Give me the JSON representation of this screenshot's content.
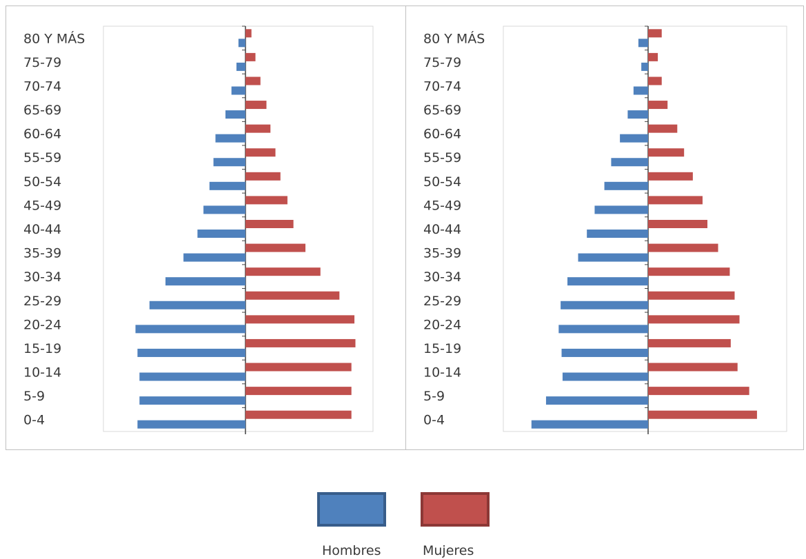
{
  "chart_data": [
    {
      "type": "bar",
      "orientation": "horizontal",
      "layout": "population-pyramid",
      "categories": [
        "0-4",
        "5-9",
        "10-14",
        "15-19",
        "20-24",
        "25-29",
        "30-34",
        "35-39",
        "40-44",
        "45-49",
        "50-54",
        "55-59",
        "60-64",
        "65-69",
        "70-74",
        "75-79",
        "80 Y MÁS"
      ],
      "series": [
        {
          "name": "Hombres",
          "values": [
            5.4,
            5.3,
            5.3,
            5.4,
            5.5,
            4.8,
            4.0,
            3.1,
            2.4,
            2.1,
            1.8,
            1.6,
            1.5,
            1.0,
            0.7,
            0.45,
            0.35
          ]
        },
        {
          "name": "Mujeres",
          "values": [
            5.3,
            5.3,
            5.3,
            5.5,
            5.45,
            4.7,
            3.75,
            3.0,
            2.4,
            2.1,
            1.75,
            1.5,
            1.25,
            1.05,
            0.75,
            0.5,
            0.3
          ]
        }
      ],
      "grid": false,
      "xlabel": "",
      "ylabel": ""
    },
    {
      "type": "bar",
      "orientation": "horizontal",
      "layout": "population-pyramid",
      "categories": [
        "0-4",
        "5-9",
        "10-14",
        "15-19",
        "20-24",
        "25-29",
        "30-34",
        "35-39",
        "40-44",
        "45-49",
        "50-54",
        "55-59",
        "60-64",
        "65-69",
        "70-74",
        "75-79",
        "80 Y MÁS"
      ],
      "series": [
        {
          "name": "Hombres",
          "values": [
            6.0,
            5.25,
            4.4,
            4.45,
            4.6,
            4.5,
            4.15,
            3.6,
            3.15,
            2.75,
            2.25,
            1.9,
            1.45,
            1.05,
            0.75,
            0.35,
            0.5
          ]
        },
        {
          "name": "Mujeres",
          "values": [
            5.6,
            5.2,
            4.6,
            4.25,
            4.7,
            4.45,
            4.2,
            3.6,
            3.05,
            2.8,
            2.3,
            1.85,
            1.5,
            1.0,
            0.7,
            0.5,
            0.7
          ]
        }
      ],
      "grid": false,
      "xlabel": "",
      "ylabel": ""
    }
  ],
  "legend": {
    "position": "bottom",
    "items": [
      {
        "label": "Hombres",
        "color": "#4f81bd",
        "border": "#385d8a"
      },
      {
        "label": "Mujeres",
        "color": "#c0504d",
        "border": "#8c3836"
      }
    ]
  },
  "colors": {
    "hombres": "#4f81bd",
    "mujeres": "#c0504d",
    "axis": "#404040",
    "plot_border": "#d9d9d9",
    "label": "#3a3a3a"
  }
}
